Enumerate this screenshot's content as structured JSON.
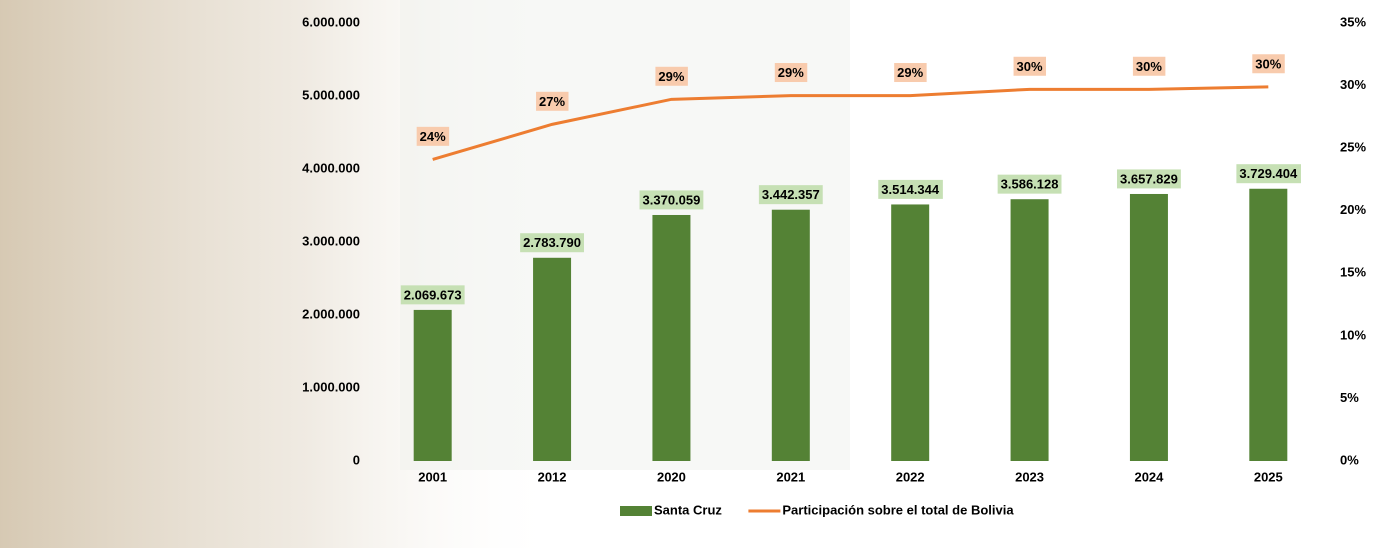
{
  "chart_data": {
    "type": "combo",
    "categories": [
      "2001",
      "2012",
      "2020",
      "2021",
      "2022",
      "2023",
      "2024",
      "2025"
    ],
    "series": [
      {
        "name": "Santa Cruz",
        "type": "bar",
        "color": "#548235",
        "label_color": "#c6e0b4",
        "values": [
          2069673,
          2783790,
          3370059,
          3442357,
          3514344,
          3586128,
          3657829,
          3729404
        ],
        "value_labels": [
          "2.069.673",
          "2.783.790",
          "3.370.059",
          "3.442.357",
          "3.514.344",
          "3.586.128",
          "3.657.829",
          "3.729.404"
        ]
      },
      {
        "name": "Participación sobre el total de Bolivia",
        "type": "line",
        "axis": "y2",
        "color": "#ed7d31",
        "label_color": "#f8cbad",
        "values": [
          24.1,
          26.9,
          28.9,
          29.2,
          29.2,
          29.7,
          29.7,
          29.9
        ],
        "value_labels": [
          "24%",
          "27%",
          "29%",
          "29%",
          "29%",
          "30%",
          "30%",
          "30%"
        ]
      }
    ],
    "ylim": [
      0,
      6000000
    ],
    "yticks": [
      0,
      {
        "value": 1000000,
        "label": "1.000.000"
      },
      {
        "value": 2000000,
        "label": "2.000.000"
      },
      {
        "value": 3000000,
        "label": "3.000.000"
      },
      {
        "value": 4000000,
        "label": "4.000.000"
      },
      {
        "value": 5000000,
        "label": "5.000.000"
      },
      {
        "value": 6000000,
        "label": "6.000.000"
      }
    ],
    "y2lim": [
      0,
      35
    ],
    "y2ticks": [
      {
        "value": 0,
        "label": "0%"
      },
      {
        "value": 5,
        "label": "5%"
      },
      {
        "value": 10,
        "label": "10%"
      },
      {
        "value": 15,
        "label": "15%"
      },
      {
        "value": 20,
        "label": "20%"
      },
      {
        "value": 25,
        "label": "25%"
      },
      {
        "value": 30,
        "label": "30%"
      },
      {
        "value": 35,
        "label": "35%"
      }
    ],
    "legend": "bottom"
  }
}
